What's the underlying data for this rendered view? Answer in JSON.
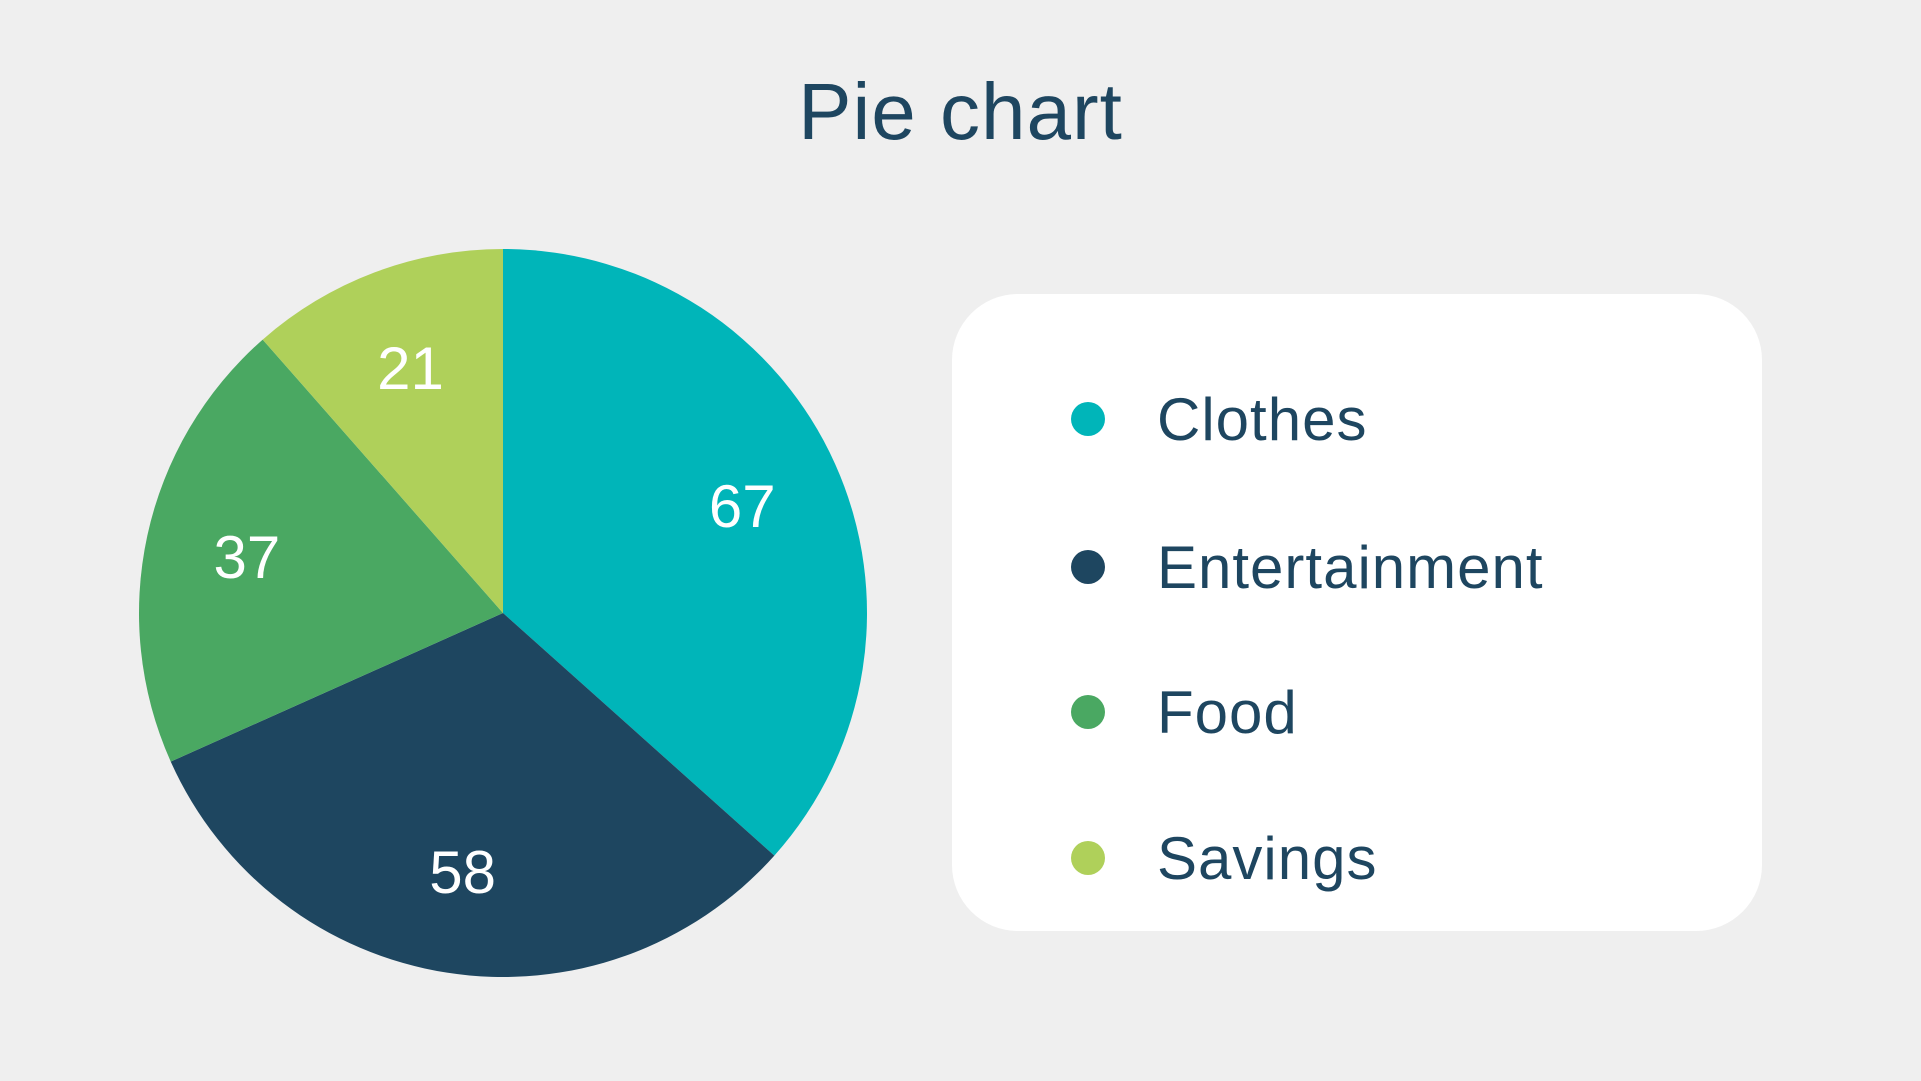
{
  "chart_data": {
    "type": "pie",
    "title": "Pie chart",
    "categories": [
      "Clothes",
      "Entertainment",
      "Food",
      "Savings"
    ],
    "values": [
      67,
      58,
      37,
      21
    ],
    "colors": [
      "#00b5b9",
      "#1e4660",
      "#4aa862",
      "#afd05a"
    ],
    "legend_position": "right",
    "data_labels": [
      "67",
      "58",
      "37",
      "21"
    ],
    "label_color": "#ffffff"
  }
}
